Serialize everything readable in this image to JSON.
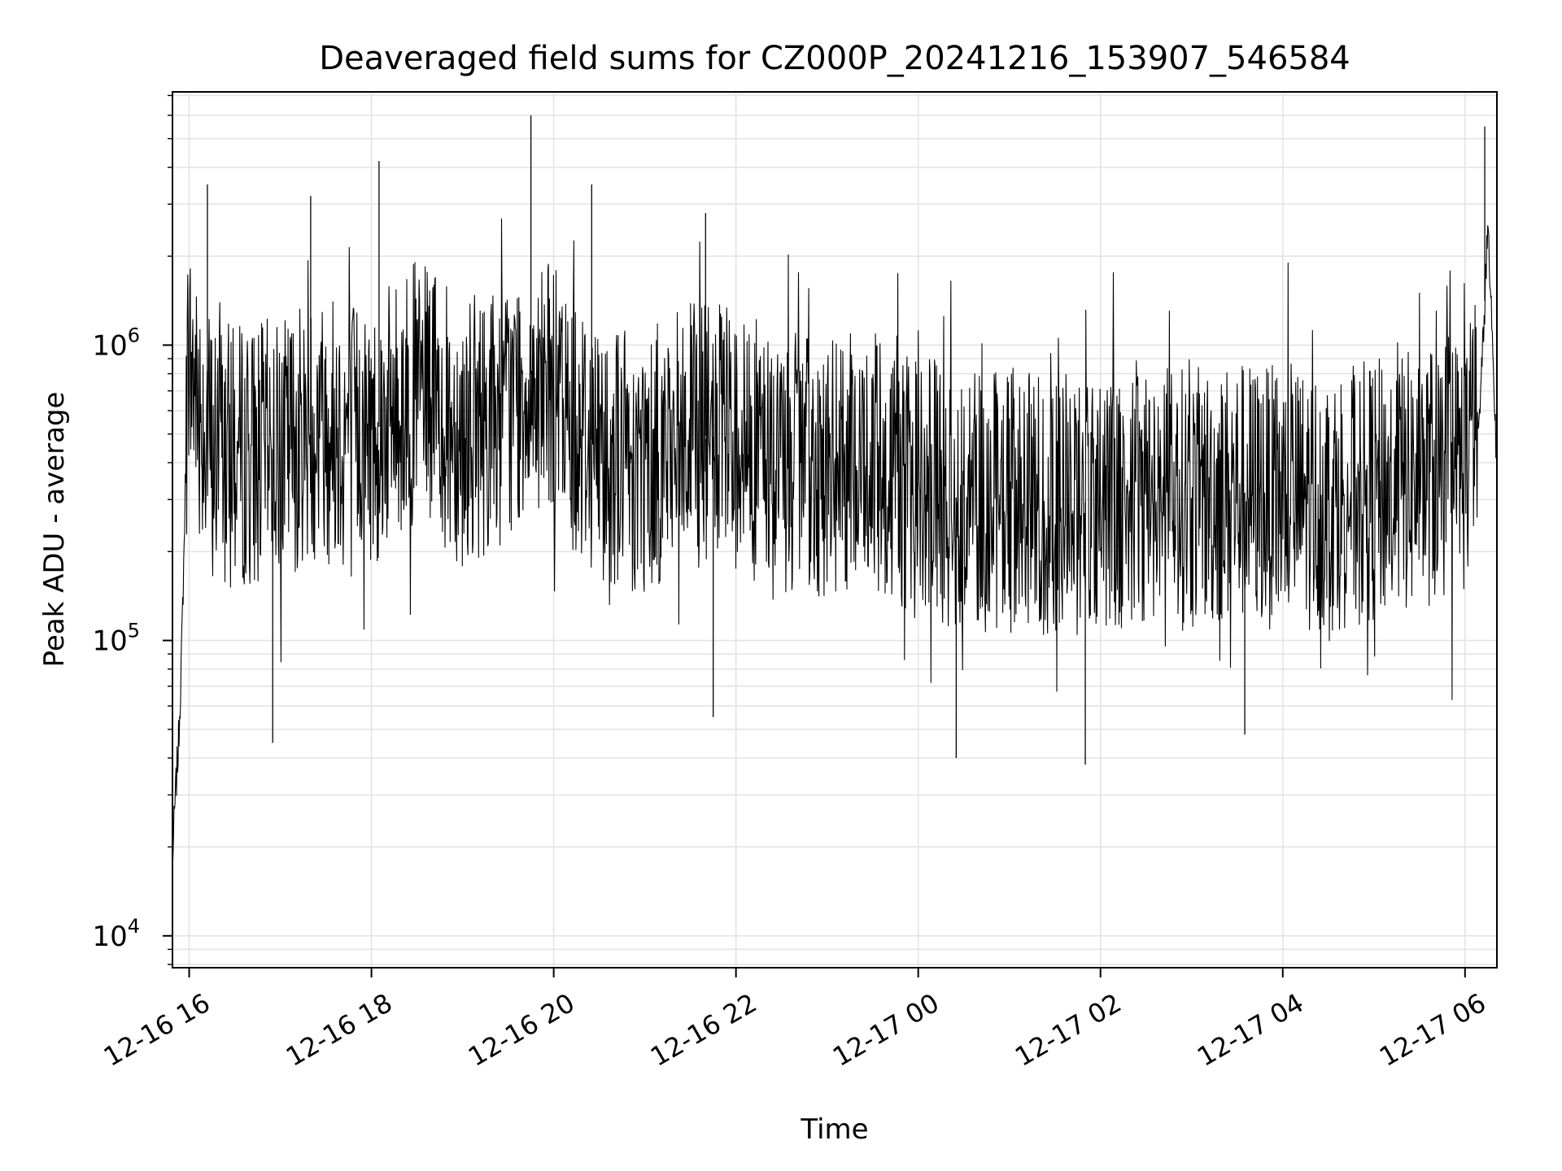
{
  "chart_data": {
    "type": "line",
    "title": "Deaveraged field sums for CZ000P_20241216_153907_546584",
    "xlabel": "Time",
    "ylabel": "Peak ADU - average",
    "x_range": [
      "2024-12-16 15:49",
      "2024-12-17 06:21"
    ],
    "ylim": [
      7800,
      7200000
    ],
    "yscale": "log",
    "grid": true,
    "line_color": "#000000",
    "x_ticks": [
      {
        "value": "2024-12-16 16:00",
        "label": "12-16 16"
      },
      {
        "value": "2024-12-16 18:00",
        "label": "12-16 18"
      },
      {
        "value": "2024-12-16 20:00",
        "label": "12-16 20"
      },
      {
        "value": "2024-12-16 22:00",
        "label": "12-16 22"
      },
      {
        "value": "2024-12-17 00:00",
        "label": "12-17 00"
      },
      {
        "value": "2024-12-17 02:00",
        "label": "12-17 02"
      },
      {
        "value": "2024-12-17 04:00",
        "label": "12-17 04"
      },
      {
        "value": "2024-12-17 06:00",
        "label": "12-17 06"
      }
    ],
    "y_ticks": [
      {
        "value": 10000,
        "base": "10",
        "exp": "4"
      },
      {
        "value": 100000,
        "base": "10",
        "exp": "5"
      },
      {
        "value": 1000000,
        "base": "10",
        "exp": "6"
      }
    ],
    "series": [
      {
        "points": [
          [
            "2024-12-16 15:49",
            18000
          ],
          [
            "2024-12-16 15:51",
            30000
          ],
          [
            "2024-12-16 15:53",
            45000
          ],
          [
            "2024-12-16 15:55",
            90000
          ],
          [
            "2024-12-16 15:57",
            250000
          ],
          [
            "2024-12-16 15:59",
            900000
          ],
          [
            "2024-12-16 16:05",
            700000
          ],
          [
            "2024-12-16 16:15",
            450000
          ],
          [
            "2024-12-16 16:30",
            420000
          ],
          [
            "2024-12-16 17:00",
            450000
          ],
          [
            "2024-12-16 17:30",
            550000
          ],
          [
            "2024-12-16 18:00",
            500000
          ],
          [
            "2024-12-16 18:30",
            700000
          ],
          [
            "2024-12-16 19:00",
            500000
          ],
          [
            "2024-12-16 19:30",
            600000
          ],
          [
            "2024-12-16 19:45",
            800000
          ],
          [
            "2024-12-16 20:00",
            650000
          ],
          [
            "2024-12-16 20:30",
            450000
          ],
          [
            "2024-12-16 21:00",
            400000
          ],
          [
            "2024-12-16 21:30",
            500000
          ],
          [
            "2024-12-16 22:00",
            480000
          ],
          [
            "2024-12-16 22:30",
            400000
          ],
          [
            "2024-12-16 23:00",
            380000
          ],
          [
            "2024-12-16 23:30",
            400000
          ],
          [
            "2024-12-17 00:00",
            330000
          ],
          [
            "2024-12-17 00:30",
            300000
          ],
          [
            "2024-12-17 01:00",
            300000
          ],
          [
            "2024-12-17 01:30",
            280000
          ],
          [
            "2024-12-17 02:00",
            300000
          ],
          [
            "2024-12-17 02:30",
            320000
          ],
          [
            "2024-12-17 03:00",
            300000
          ],
          [
            "2024-12-17 03:30",
            320000
          ],
          [
            "2024-12-17 04:00",
            300000
          ],
          [
            "2024-12-17 04:30",
            300000
          ],
          [
            "2024-12-17 05:00",
            320000
          ],
          [
            "2024-12-17 05:30",
            350000
          ],
          [
            "2024-12-17 06:00",
            400000
          ],
          [
            "2024-12-17 06:10",
            600000
          ],
          [
            "2024-12-17 06:15",
            2500000
          ],
          [
            "2024-12-17 06:21",
            400000
          ]
        ],
        "spikes": [
          [
            "2024-12-16 16:12",
            3500000
          ],
          [
            "2024-12-16 17:20",
            3200000
          ],
          [
            "2024-12-16 18:05",
            4200000
          ],
          [
            "2024-12-16 19:45",
            6000000
          ],
          [
            "2024-12-16 20:25",
            3500000
          ],
          [
            "2024-12-16 21:40",
            2800000
          ],
          [
            "2024-12-17 06:13",
            5500000
          ],
          [
            "2024-12-16 16:55",
            45000
          ],
          [
            "2024-12-16 21:45",
            55000
          ],
          [
            "2024-12-17 00:25",
            40000
          ],
          [
            "2024-12-17 01:50",
            38000
          ],
          [
            "2024-12-17 03:35",
            48000
          ]
        ]
      }
    ]
  }
}
